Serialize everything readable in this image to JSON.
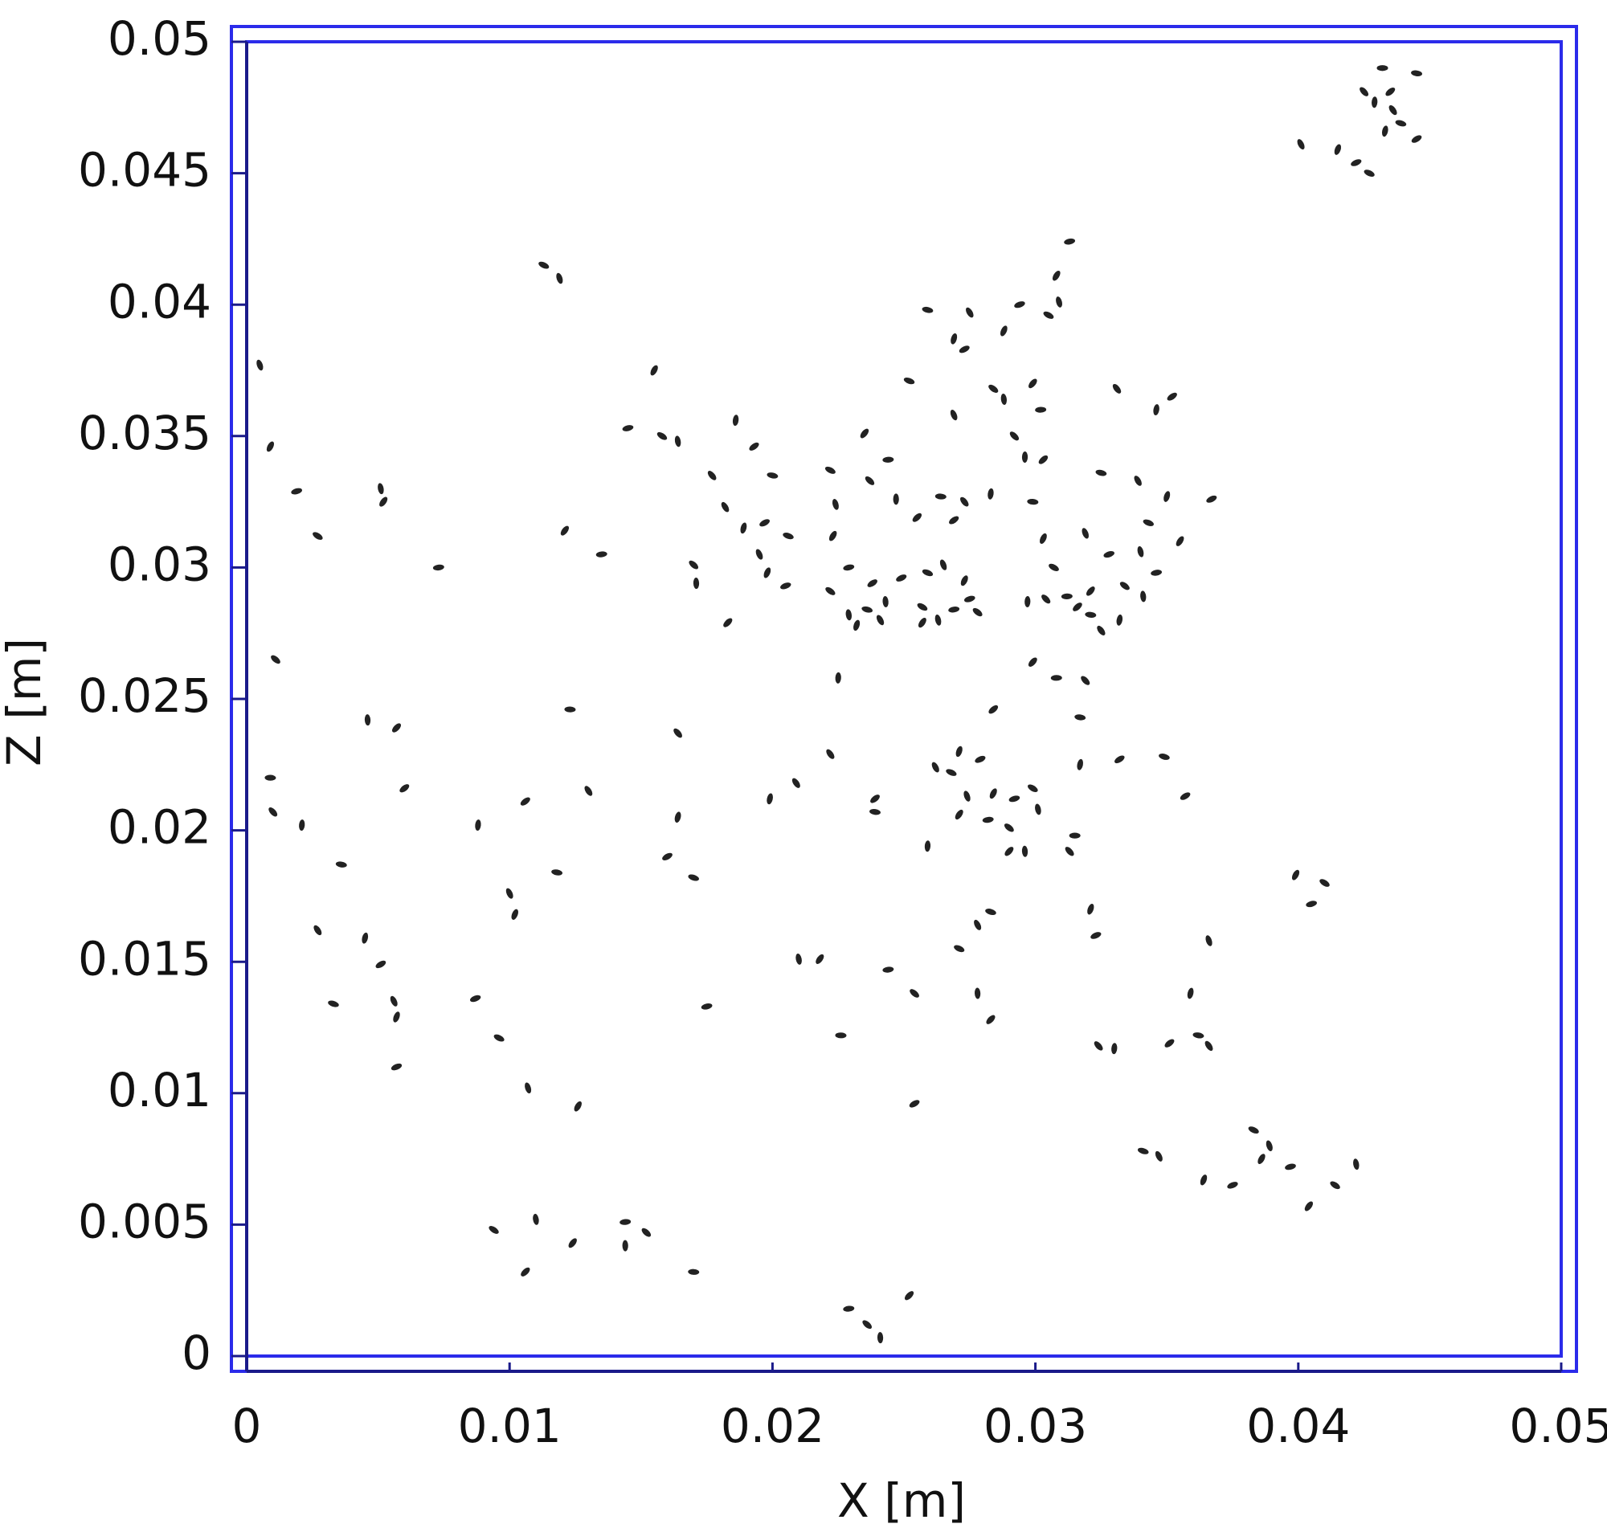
{
  "chart_data": {
    "type": "scatter",
    "x_label": "X [m]",
    "y_label": "Z [m]",
    "color": "#222222",
    "frame_color": "#2b2bea",
    "grid": false,
    "xlim": [
      0,
      0.05
    ],
    "ylim": [
      0,
      0.05
    ],
    "xticks": [
      0,
      0.01,
      0.02,
      0.03,
      0.04,
      0.05
    ],
    "yticks": [
      0,
      0.005,
      0.01,
      0.015,
      0.02,
      0.025,
      0.03,
      0.035,
      0.04,
      0.045,
      0.05
    ],
    "x": [
      0.0432,
      0.0425,
      0.0429,
      0.0435,
      0.0445,
      0.0436,
      0.0433,
      0.0445,
      0.0439,
      0.0401,
      0.0415,
      0.0422,
      0.0427,
      0.0005,
      0.0009,
      0.0019,
      0.0027,
      0.0051,
      0.0052,
      0.0073,
      0.0011,
      0.0046,
      0.0057,
      0.0009,
      0.001,
      0.0021,
      0.006,
      0.0036,
      0.0027,
      0.0045,
      0.0051,
      0.0033,
      0.0056,
      0.0057,
      0.0057,
      0.0113,
      0.0119,
      0.0155,
      0.0145,
      0.0158,
      0.0164,
      0.0121,
      0.0135,
      0.017,
      0.0171,
      0.0183,
      0.0123,
      0.0164,
      0.0088,
      0.0106,
      0.0118,
      0.013,
      0.0164,
      0.016,
      0.017,
      0.01,
      0.0102,
      0.0087,
      0.0096,
      0.0107,
      0.0126,
      0.0175,
      0.0094,
      0.011,
      0.0124,
      0.0144,
      0.0152,
      0.0144,
      0.0106,
      0.017,
      0.0177,
      0.0186,
      0.0193,
      0.02,
      0.0182,
      0.0189,
      0.0197,
      0.0206,
      0.0195,
      0.0198,
      0.0205,
      0.0222,
      0.0224,
      0.0223,
      0.0229,
      0.0222,
      0.0229,
      0.0235,
      0.0244,
      0.0237,
      0.0247,
      0.0255,
      0.0264,
      0.0273,
      0.0283,
      0.0269,
      0.0259,
      0.0275,
      0.0269,
      0.0273,
      0.0252,
      0.0269,
      0.0288,
      0.0294,
      0.0305,
      0.0309,
      0.0308,
      0.0313,
      0.0284,
      0.0288,
      0.0299,
      0.0302,
      0.0292,
      0.0296,
      0.0303,
      0.0299,
      0.0331,
      0.0346,
      0.0352,
      0.0325,
      0.0339,
      0.035,
      0.0367,
      0.0343,
      0.0319,
      0.0303,
      0.0328,
      0.0307,
      0.034,
      0.0355,
      0.0346,
      0.0334,
      0.0341,
      0.0321,
      0.0312,
      0.0304,
      0.0297,
      0.0316,
      0.0321,
      0.0325,
      0.0332,
      0.0238,
      0.0236,
      0.0241,
      0.0232,
      0.0249,
      0.0259,
      0.0265,
      0.0273,
      0.0275,
      0.0257,
      0.0263,
      0.0257,
      0.0269,
      0.0278,
      0.0243,
      0.0299,
      0.0308,
      0.0319,
      0.0225,
      0.0284,
      0.0317,
      0.0222,
      0.0317,
      0.0332,
      0.0349,
      0.0262,
      0.0271,
      0.0279,
      0.0268,
      0.0274,
      0.0284,
      0.0292,
      0.0299,
      0.0301,
      0.0271,
      0.0282,
      0.029,
      0.0296,
      0.029,
      0.0315,
      0.0313,
      0.0259,
      0.0239,
      0.0239,
      0.0209,
      0.0199,
      0.0357,
      0.0283,
      0.0278,
      0.0321,
      0.0323,
      0.0271,
      0.0366,
      0.0399,
      0.0405,
      0.041,
      0.021,
      0.0218,
      0.0244,
      0.0254,
      0.0278,
      0.0283,
      0.0226,
      0.0324,
      0.033,
      0.0351,
      0.0362,
      0.0366,
      0.0359,
      0.0254,
      0.0341,
      0.0347,
      0.0364,
      0.0375,
      0.0383,
      0.0389,
      0.0386,
      0.0397,
      0.0414,
      0.0422,
      0.0404,
      0.0229,
      0.0236,
      0.0241,
      0.0252
    ],
    "values": [
      0.049,
      0.0481,
      0.0477,
      0.0481,
      0.0488,
      0.0474,
      0.0466,
      0.0463,
      0.0469,
      0.0461,
      0.0459,
      0.0454,
      0.045,
      0.0377,
      0.0346,
      0.0329,
      0.0312,
      0.033,
      0.0325,
      0.03,
      0.0265,
      0.0242,
      0.0239,
      0.022,
      0.0207,
      0.0202,
      0.0216,
      0.0187,
      0.0162,
      0.0159,
      0.0149,
      0.0134,
      0.0135,
      0.0129,
      0.011,
      0.0415,
      0.041,
      0.0375,
      0.0353,
      0.035,
      0.0348,
      0.0314,
      0.0305,
      0.0301,
      0.0294,
      0.0279,
      0.0246,
      0.0237,
      0.0202,
      0.0211,
      0.0184,
      0.0215,
      0.0205,
      0.019,
      0.0182,
      0.0176,
      0.0168,
      0.0136,
      0.0121,
      0.0102,
      0.0095,
      0.0133,
      0.0048,
      0.0052,
      0.0043,
      0.0051,
      0.0047,
      0.0042,
      0.0032,
      0.0032,
      0.0335,
      0.0356,
      0.0346,
      0.0335,
      0.0323,
      0.0315,
      0.0317,
      0.0312,
      0.0305,
      0.0298,
      0.0293,
      0.0337,
      0.0324,
      0.0312,
      0.03,
      0.0291,
      0.0282,
      0.0351,
      0.0341,
      0.0333,
      0.0326,
      0.0319,
      0.0327,
      0.0325,
      0.0328,
      0.0318,
      0.0398,
      0.0397,
      0.0387,
      0.0383,
      0.0371,
      0.0358,
      0.039,
      0.04,
      0.0396,
      0.0401,
      0.0411,
      0.0424,
      0.0368,
      0.0364,
      0.037,
      0.036,
      0.035,
      0.0342,
      0.0341,
      0.0325,
      0.0368,
      0.036,
      0.0365,
      0.0336,
      0.0333,
      0.0327,
      0.0326,
      0.0317,
      0.0313,
      0.0311,
      0.0305,
      0.03,
      0.0306,
      0.031,
      0.0298,
      0.0293,
      0.0289,
      0.0291,
      0.0289,
      0.0288,
      0.0287,
      0.0285,
      0.0282,
      0.0276,
      0.028,
      0.0294,
      0.0284,
      0.028,
      0.0278,
      0.0296,
      0.0298,
      0.0301,
      0.0295,
      0.0288,
      0.0285,
      0.028,
      0.0279,
      0.0284,
      0.0283,
      0.0287,
      0.0264,
      0.0258,
      0.0257,
      0.0258,
      0.0246,
      0.0243,
      0.0229,
      0.0225,
      0.0227,
      0.0228,
      0.0224,
      0.023,
      0.0227,
      0.0222,
      0.0213,
      0.0214,
      0.0212,
      0.0216,
      0.0208,
      0.0206,
      0.0204,
      0.0201,
      0.0192,
      0.0192,
      0.0198,
      0.0192,
      0.0194,
      0.0212,
      0.0207,
      0.0218,
      0.0212,
      0.0213,
      0.0169,
      0.0164,
      0.017,
      0.016,
      0.0155,
      0.0158,
      0.0183,
      0.0172,
      0.018,
      0.0151,
      0.0151,
      0.0147,
      0.0138,
      0.0138,
      0.0128,
      0.0122,
      0.0118,
      0.0117,
      0.0119,
      0.0122,
      0.0118,
      0.0138,
      0.0096,
      0.0078,
      0.0076,
      0.0067,
      0.0065,
      0.0086,
      0.008,
      0.0075,
      0.0072,
      0.0065,
      0.0073,
      0.0057,
      0.0018,
      0.0012,
      0.0007,
      0.0023
    ]
  }
}
